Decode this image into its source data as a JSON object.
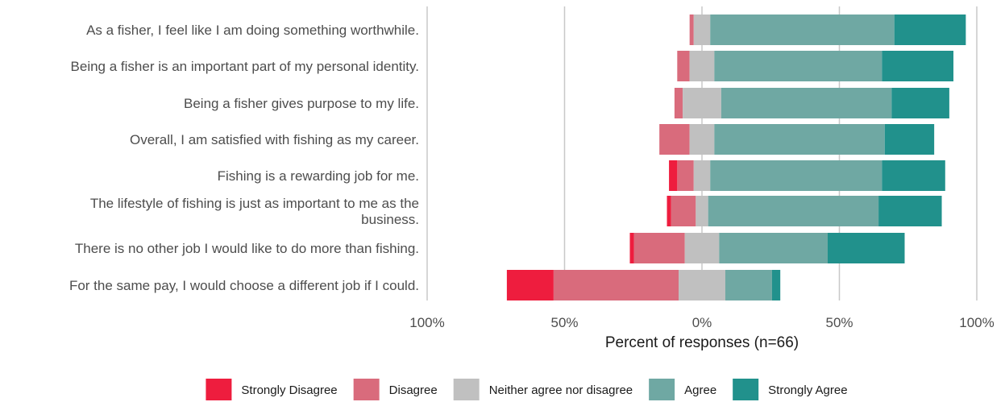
{
  "chart_data": {
    "type": "bar",
    "orientation": "horizontal",
    "stacked": "diverging",
    "categories": [
      [
        "As a fisher, I feel like I am doing something worthwhile."
      ],
      [
        "Being a fisher is an important part of my personal identity."
      ],
      [
        "Being a fisher gives purpose to my life."
      ],
      [
        "Overall, I am satisfied with fishing as my career."
      ],
      [
        "Fishing is a rewarding job for me."
      ],
      [
        "The lifestyle of fishing is just as important to me as the",
        "business."
      ],
      [
        "There is no other job I would like to do more than fishing."
      ],
      [
        "For the same pay, I would choose a different job if I could."
      ]
    ],
    "series": [
      {
        "name": "Strongly Disagree",
        "color": "#ee1d3e",
        "values": [
          0,
          0,
          0,
          0,
          3,
          1.5,
          1.5,
          17
        ]
      },
      {
        "name": "Disagree",
        "color": "#d96b7c",
        "values": [
          1.5,
          4.5,
          3,
          11,
          6,
          9,
          18.5,
          45.5
        ]
      },
      {
        "name": "Neither agree nor disagree",
        "color": "#c0c0c0",
        "values": [
          6,
          9,
          14,
          9,
          6,
          4.5,
          12.5,
          17
        ]
      },
      {
        "name": "Agree",
        "color": "#6fa8a3",
        "values": [
          67,
          61,
          62,
          62,
          62.5,
          62,
          39.5,
          17
        ]
      },
      {
        "name": "Strongly Agree",
        "color": "#21918c",
        "values": [
          26,
          26,
          21,
          18,
          23,
          23,
          28,
          3
        ]
      }
    ],
    "xticks": [
      "100%",
      "50%",
      "0%",
      "50%",
      "100%"
    ],
    "xlim": [
      -100,
      100
    ],
    "xlabel": "Percent of responses (n=66)",
    "grid": true,
    "legend_position": "bottom"
  }
}
